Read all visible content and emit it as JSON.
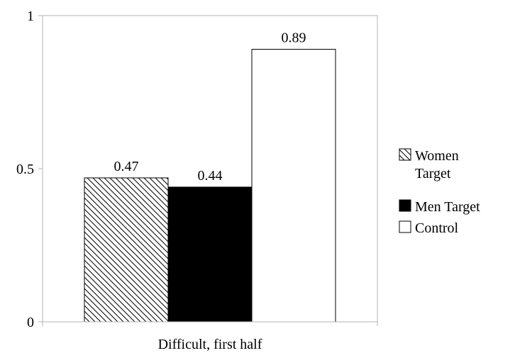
{
  "chart_data": {
    "type": "bar",
    "categories": [
      "Difficult, first half"
    ],
    "series": [
      {
        "name": "Women Target",
        "values": [
          0.47
        ],
        "data_label": "0.47",
        "fill": "hatched"
      },
      {
        "name": "Men Target",
        "values": [
          0.44
        ],
        "data_label": "0.44",
        "fill": "#000000"
      },
      {
        "name": "Control",
        "values": [
          0.89
        ],
        "data_label": "0.89",
        "fill": "#ffffff"
      }
    ],
    "ylim": [
      0,
      1
    ],
    "yticks": [
      {
        "value": 0,
        "label": "0"
      },
      {
        "value": 0.5,
        "label": "0.5"
      },
      {
        "value": 1,
        "label": "1"
      }
    ],
    "grid": false,
    "legend_position": "right",
    "legend": [
      {
        "lines": [
          "Women",
          "Target"
        ],
        "swatch": "hatched"
      },
      {
        "lines": [
          "Men Target"
        ],
        "swatch": "#000000"
      },
      {
        "lines": [
          "Control"
        ],
        "swatch": "#ffffff"
      }
    ]
  }
}
